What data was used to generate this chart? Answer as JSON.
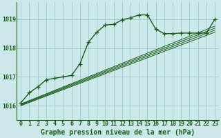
{
  "title": "Graphe pression niveau de la mer (hPa)",
  "background_color": "#cce8e8",
  "grid_color": "#99cccc",
  "line_color": "#1a5c1a",
  "text_color": "#1a5c1a",
  "border_color": "#1a5c1a",
  "xlim": [
    -0.5,
    23.5
  ],
  "ylim": [
    1015.5,
    1019.6
  ],
  "yticks": [
    1016,
    1017,
    1018,
    1019
  ],
  "xticks": [
    0,
    1,
    2,
    3,
    4,
    5,
    6,
    7,
    8,
    9,
    10,
    11,
    12,
    13,
    14,
    15,
    16,
    17,
    18,
    19,
    20,
    21,
    22,
    23
  ],
  "main_x": [
    0,
    1,
    2,
    3,
    4,
    5,
    6,
    7,
    8,
    9,
    10,
    11,
    12,
    13,
    14,
    15,
    16,
    17,
    18,
    19,
    20,
    21,
    22,
    23
  ],
  "main_y": [
    1016.1,
    1016.45,
    1016.65,
    1016.9,
    1016.95,
    1017.0,
    1017.05,
    1017.45,
    1018.2,
    1018.55,
    1018.8,
    1018.82,
    1018.98,
    1019.05,
    1019.15,
    1019.15,
    1018.65,
    1018.5,
    1018.5,
    1018.52,
    1018.52,
    1018.52,
    1018.52,
    1019.0
  ],
  "band_lines": [
    {
      "x": [
        0,
        23
      ],
      "y": [
        1016.0,
        1018.55
      ]
    },
    {
      "x": [
        0,
        23
      ],
      "y": [
        1016.02,
        1018.62
      ]
    },
    {
      "x": [
        0,
        23
      ],
      "y": [
        1016.04,
        1018.69
      ]
    },
    {
      "x": [
        0,
        23
      ],
      "y": [
        1016.06,
        1018.76
      ]
    }
  ],
  "marker_style": "+",
  "marker_size": 4,
  "linewidth_main": 1.0,
  "linewidth_band": 0.7,
  "fontsize_ticks": 6,
  "fontsize_title": 7,
  "title_fontweight": "bold"
}
